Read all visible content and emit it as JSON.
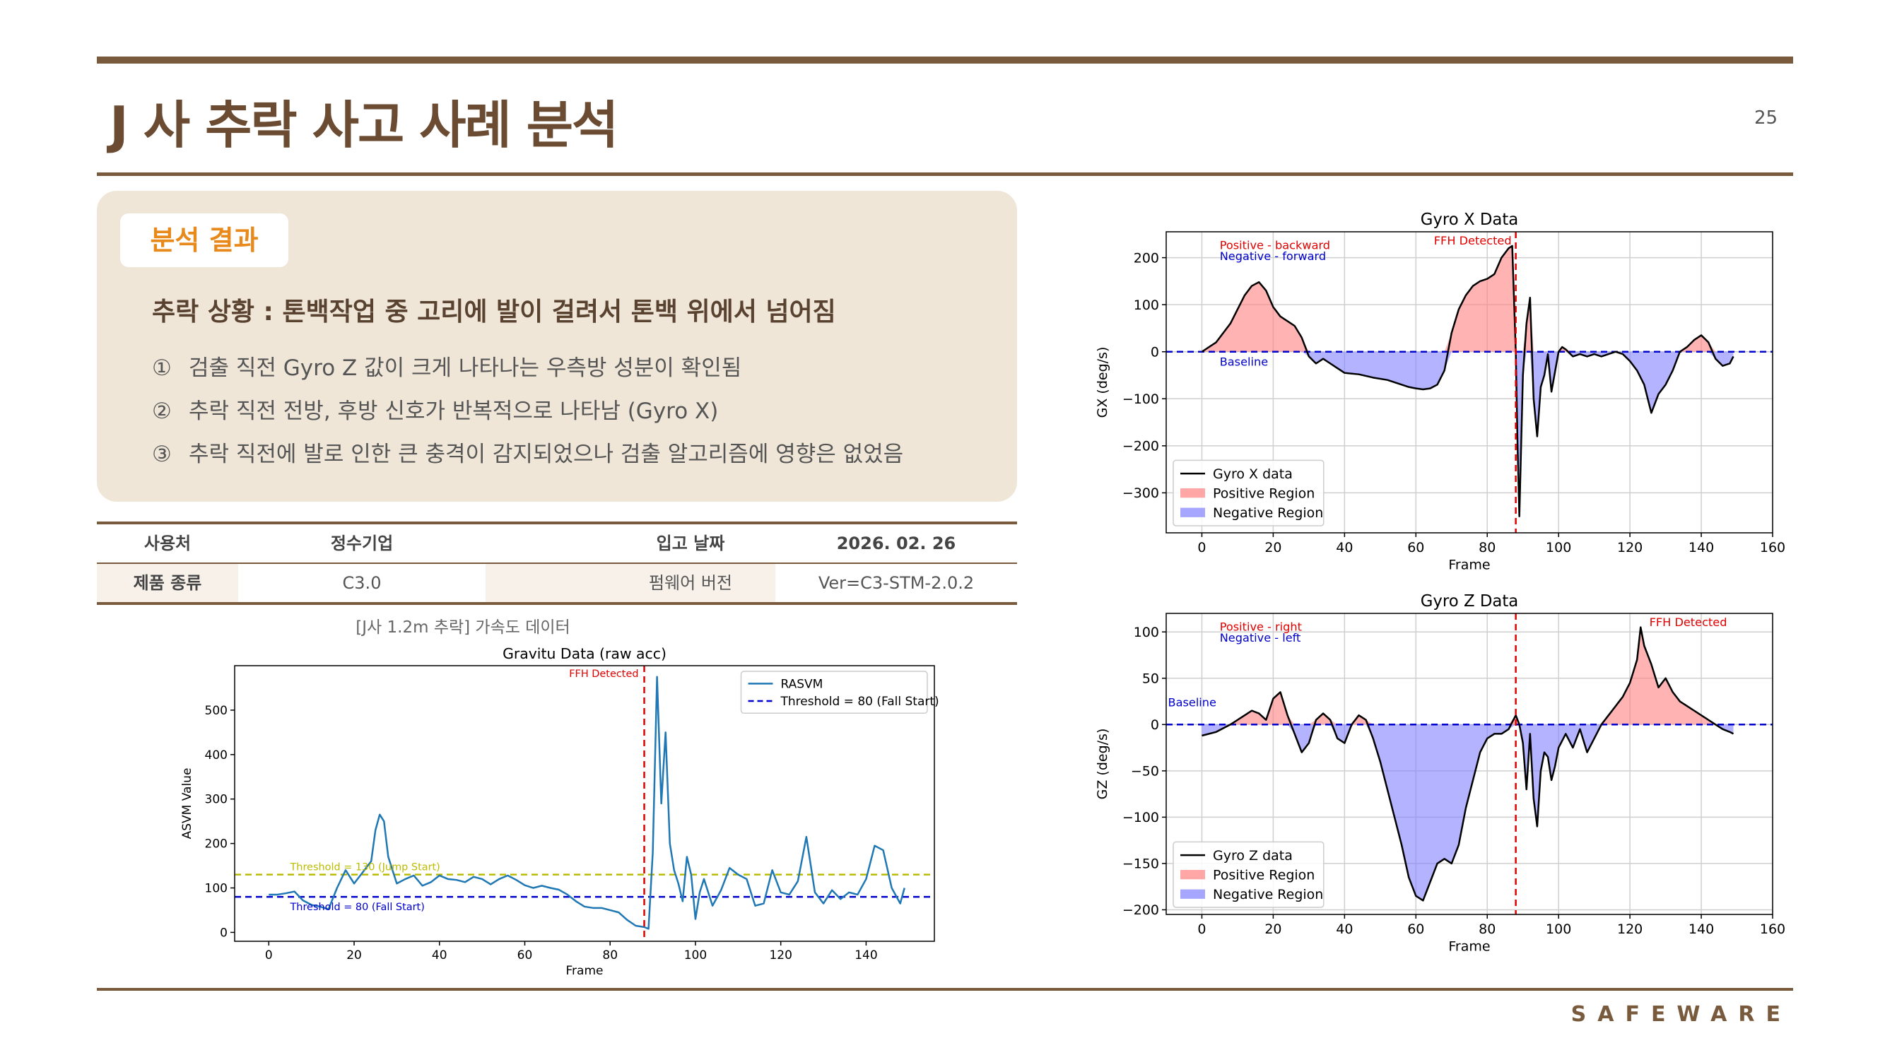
{
  "header": {
    "title": "J 사 추락 사고 사례 분석",
    "page_number": "25"
  },
  "summary": {
    "tag": "분석 결과",
    "headline": "추락 상황 : 톤백작업 중 고리에 발이 걸려서 톤백 위에서 넘어짐",
    "findings": [
      {
        "num": "①",
        "text": "검출 직전 Gyro Z 값이 크게 나타나는 우측방 성분이 확인됨"
      },
      {
        "num": "②",
        "text": "추락 직전 전방, 후방 신호가 반복적으로 나타남 (Gyro X)"
      },
      {
        "num": "③",
        "text": "추락 직전에 발로 인한 큰 충격이 감지되었으나 검출 알고리즘에 영향은 없었음"
      }
    ]
  },
  "info_table": {
    "row1": {
      "label_a": "사용처",
      "value_a": "정수기업",
      "label_b": "입고 날짜",
      "value_b": "2026. 02. 26"
    },
    "row2": {
      "label_a": "제품 종류",
      "value_a": "C3.0",
      "label_b": "펌웨어 버전",
      "value_b": "Ver=C3-STM-2.0.2"
    }
  },
  "acc_caption": "[J사 1.2m 추락] 가속도 데이터",
  "brand": "SAFEWARE",
  "chart_data": [
    {
      "type": "line",
      "title": "Gravitu Data (raw acc)",
      "xlabel": "Frame",
      "ylabel": "ASVM Value",
      "xlim": [
        -8,
        156
      ],
      "ylim": [
        -20,
        600
      ],
      "xticks": [
        0,
        20,
        40,
        60,
        80,
        100,
        120,
        140
      ],
      "yticks": [
        0,
        100,
        200,
        300,
        400,
        500
      ],
      "grid": false,
      "legend_position": "top-right",
      "series": [
        {
          "name": "RASVM",
          "color": "#1f77b4",
          "x": [
            0,
            2,
            4,
            6,
            8,
            10,
            12,
            14,
            16,
            18,
            20,
            22,
            24,
            25,
            26,
            27,
            28,
            30,
            32,
            34,
            36,
            38,
            40,
            42,
            44,
            46,
            48,
            50,
            52,
            54,
            56,
            58,
            60,
            62,
            64,
            66,
            68,
            70,
            72,
            74,
            76,
            78,
            80,
            82,
            84,
            86,
            88,
            89,
            90,
            91,
            92,
            93,
            94,
            95,
            96,
            97,
            98,
            99,
            100,
            101,
            102,
            104,
            106,
            108,
            110,
            112,
            114,
            116,
            118,
            120,
            122,
            124,
            126,
            128,
            130,
            132,
            134,
            136,
            138,
            140,
            142,
            144,
            146,
            148,
            149
          ],
          "y": [
            85,
            85,
            88,
            92,
            72,
            62,
            58,
            52,
            100,
            140,
            110,
            135,
            160,
            230,
            265,
            250,
            170,
            110,
            120,
            128,
            105,
            113,
            128,
            120,
            118,
            113,
            125,
            120,
            108,
            120,
            128,
            118,
            106,
            100,
            105,
            100,
            96,
            85,
            70,
            58,
            55,
            55,
            50,
            45,
            28,
            15,
            12,
            8,
            180,
            575,
            290,
            450,
            200,
            140,
            110,
            70,
            170,
            130,
            30,
            90,
            120,
            60,
            95,
            145,
            130,
            120,
            60,
            65,
            140,
            90,
            85,
            115,
            215,
            90,
            65,
            95,
            75,
            90,
            85,
            120,
            195,
            185,
            100,
            65,
            100
          ]
        }
      ],
      "thresholds": [
        {
          "name": "Threshold = 80 (Fall Start)",
          "value": 80,
          "color": "#0000cc",
          "in_legend": true
        },
        {
          "name": "Threshold = 130 (Jump Start)",
          "value": 130,
          "color": "#bbbb00",
          "in_legend": false
        }
      ],
      "threshold_labels": [
        {
          "text": "Threshold = 130 (Jump Start)",
          "color": "#bbbb00"
        },
        {
          "text": "Threshold = 80 (Fall Start)",
          "color": "#0000cc"
        }
      ],
      "event": {
        "label": "FFH Detected",
        "x": 88,
        "color": "#e00000"
      }
    },
    {
      "type": "area",
      "title": "Gyro X Data",
      "xlabel": "Frame",
      "ylabel": "GX (deg/s)",
      "xlim": [
        -10,
        160
      ],
      "ylim": [
        -385,
        255
      ],
      "xticks": [
        0,
        20,
        40,
        60,
        80,
        100,
        120,
        140,
        160
      ],
      "yticks": [
        200,
        100,
        0,
        -100,
        -200,
        -300
      ],
      "grid": true,
      "legend_position": "bottom-left",
      "legend": [
        "Gyro X data",
        "Positive Region",
        "Negative Region"
      ],
      "annotations": {
        "positive": "Positive - backward",
        "negative": "Negative - forward",
        "baseline": "Baseline"
      },
      "baseline": 0,
      "event": {
        "label": "FFH Detected",
        "x": 88,
        "color": "#e00000"
      },
      "series": [
        {
          "name": "Gyro X data",
          "x": [
            0,
            4,
            8,
            12,
            14,
            16,
            18,
            20,
            22,
            24,
            26,
            28,
            30,
            32,
            34,
            36,
            38,
            40,
            44,
            48,
            52,
            56,
            58,
            60,
            62,
            64,
            66,
            68,
            70,
            72,
            74,
            76,
            78,
            80,
            82,
            84,
            86,
            87,
            88,
            88.5,
            89,
            89.5,
            90,
            91,
            92,
            93,
            94,
            95,
            96,
            97,
            98,
            100,
            101,
            102,
            104,
            106,
            108,
            110,
            112,
            114,
            116,
            118,
            120,
            122,
            124,
            126,
            128,
            130,
            132,
            134,
            136,
            138,
            140,
            142,
            144,
            146,
            148,
            149
          ],
          "y": [
            0,
            20,
            60,
            120,
            140,
            148,
            130,
            95,
            75,
            65,
            55,
            30,
            -10,
            -25,
            -15,
            -25,
            -35,
            -45,
            -48,
            -55,
            -60,
            -70,
            -75,
            -78,
            -80,
            -78,
            -70,
            -40,
            40,
            90,
            120,
            140,
            150,
            155,
            165,
            200,
            220,
            225,
            0,
            -200,
            -350,
            -200,
            -50,
            60,
            115,
            -100,
            -180,
            -75,
            -50,
            -5,
            -85,
            0,
            10,
            5,
            -10,
            -5,
            -10,
            -5,
            -10,
            -5,
            0,
            -5,
            -20,
            -40,
            -70,
            -130,
            -90,
            -70,
            -40,
            0,
            10,
            25,
            35,
            20,
            -15,
            -30,
            -25,
            -10
          ]
        }
      ]
    },
    {
      "type": "area",
      "title": "Gyro Z Data",
      "xlabel": "Frame",
      "ylabel": "GZ (deg/s)",
      "xlim": [
        -10,
        160
      ],
      "ylim": [
        -205,
        120
      ],
      "xticks": [
        0,
        20,
        40,
        60,
        80,
        100,
        120,
        140,
        160
      ],
      "yticks": [
        100,
        50,
        0,
        -50,
        -100,
        -150,
        -200
      ],
      "grid": true,
      "legend_position": "bottom-left",
      "legend": [
        "Gyro Z data",
        "Positive Region",
        "Negative Region"
      ],
      "annotations": {
        "positive": "Positive - right",
        "negative": "Negative - left",
        "baseline": "Baseline"
      },
      "baseline": 0,
      "event": {
        "label": "FFH Detected",
        "x": 88,
        "color": "#e00000"
      },
      "series": [
        {
          "name": "Gyro Z data",
          "x": [
            0,
            4,
            8,
            10,
            12,
            14,
            16,
            18,
            20,
            22,
            24,
            26,
            28,
            30,
            32,
            34,
            36,
            38,
            40,
            42,
            44,
            46,
            48,
            50,
            52,
            54,
            56,
            58,
            60,
            62,
            64,
            66,
            68,
            70,
            72,
            74,
            76,
            78,
            80,
            82,
            84,
            86,
            88,
            89,
            90,
            91,
            92,
            93,
            94,
            95,
            96,
            97,
            98,
            99,
            100,
            102,
            104,
            106,
            108,
            110,
            112,
            114,
            116,
            118,
            120,
            122,
            123,
            124,
            126,
            128,
            130,
            132,
            134,
            136,
            138,
            140,
            142,
            144,
            146,
            148,
            149
          ],
          "y": [
            -12,
            -8,
            0,
            5,
            10,
            15,
            12,
            5,
            28,
            35,
            10,
            -10,
            -30,
            -20,
            5,
            12,
            5,
            -15,
            -20,
            0,
            10,
            5,
            -15,
            -40,
            -70,
            -100,
            -130,
            -165,
            -185,
            -190,
            -170,
            -150,
            -145,
            -150,
            -130,
            -90,
            -60,
            -30,
            -15,
            -10,
            -10,
            -5,
            10,
            0,
            -20,
            -70,
            -10,
            -80,
            -110,
            -50,
            -30,
            -35,
            -60,
            -45,
            -25,
            -10,
            -25,
            -5,
            -30,
            -15,
            0,
            10,
            20,
            30,
            45,
            70,
            105,
            85,
            65,
            40,
            50,
            35,
            25,
            20,
            15,
            10,
            5,
            0,
            -5,
            -8,
            -10
          ]
        }
      ]
    }
  ]
}
